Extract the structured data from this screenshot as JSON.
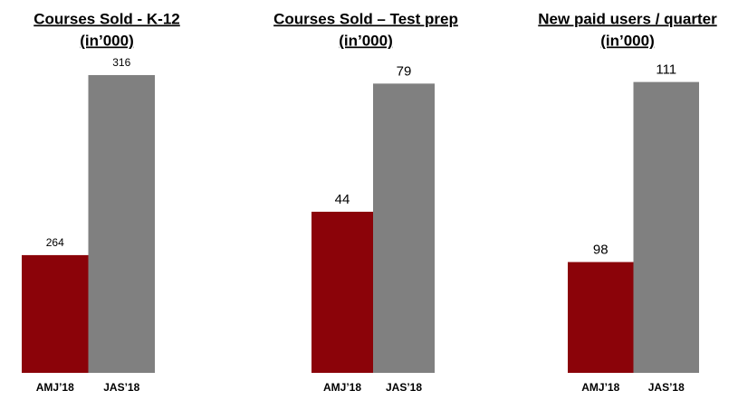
{
  "chart_data": [
    {
      "type": "bar",
      "title": "Courses Sold - K-12",
      "subtitle": "(in’000)",
      "categories": [
        "AMJ’18",
        "JAS’18"
      ],
      "values": [
        264,
        316
      ],
      "colors": [
        "#8b0309",
        "#808080"
      ],
      "ylim": [
        230,
        322
      ]
    },
    {
      "type": "bar",
      "title": "Courses Sold – Test prep",
      "subtitle": "(in’000)",
      "categories": [
        "AMJ’18",
        "JAS’18"
      ],
      "values": [
        44,
        79
      ],
      "colors": [
        "#8b0309",
        "#808080"
      ],
      "ylim": [
        0,
        87
      ]
    },
    {
      "type": "bar",
      "title": "New paid users / quarter",
      "subtitle": "(in’000)",
      "categories": [
        "AMJ’18",
        "JAS’18"
      ],
      "values": [
        98,
        111
      ],
      "colors": [
        "#8b0309",
        "#808080"
      ],
      "ylim": [
        90,
        113
      ]
    }
  ]
}
